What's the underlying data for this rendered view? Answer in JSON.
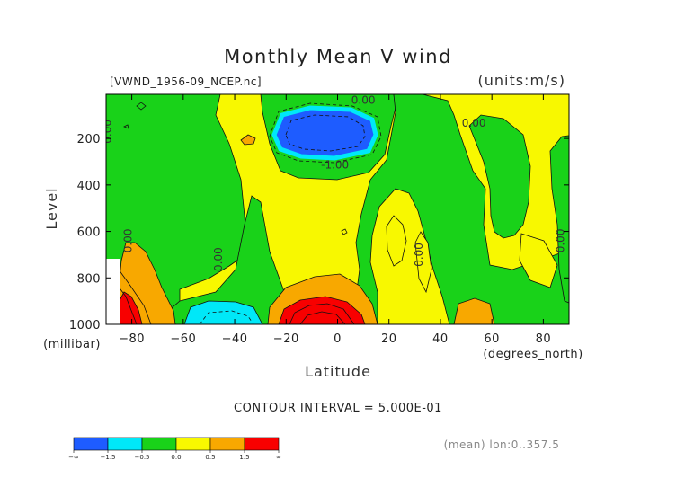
{
  "chart_data": {
    "type": "heatmap",
    "title": "Monthly Mean V wind",
    "file_label": "[VWND_1956-09_NCEP.nc]",
    "units_label": "(units:m/s)",
    "xlabel": "Latitude",
    "x_units": "(degrees_north)",
    "ylabel": "Level",
    "y_units": "(millibar)",
    "xlim": [
      -90,
      90
    ],
    "ylim": [
      1000,
      10
    ],
    "x_ticks": [
      -80,
      -60,
      -40,
      -20,
      0,
      20,
      40,
      60,
      80
    ],
    "y_ticks": [
      200,
      400,
      600,
      800,
      1000
    ],
    "contour_interval_text": "CONTOUR INTERVAL = 5.000E-01",
    "contour_labels": [
      {
        "text": "0.00",
        "lat": 10,
        "lev": 50
      },
      {
        "text": "0.00",
        "lat": 53,
        "lev": 150
      },
      {
        "text": "-1.00",
        "lat": -1,
        "lev": 330
      },
      {
        "text": "0.00",
        "lat": -88,
        "lev": 170,
        "rotate": -90
      },
      {
        "text": "0.00",
        "lat": -80,
        "lev": 640,
        "rotate": -90
      },
      {
        "text": "0.00",
        "lat": -45,
        "lev": 720,
        "rotate": -90
      },
      {
        "text": "0.00",
        "lat": 33,
        "lev": 700,
        "rotate": -90
      },
      {
        "text": "0.00",
        "lat": 88,
        "lev": 640,
        "rotate": -90
      }
    ],
    "colorbar": {
      "labels": [
        "-∞",
        "-1.5",
        "-0.5",
        "0.0",
        "0.5",
        "1.5",
        "∞"
      ],
      "colors": [
        "#1e5cff",
        "#00e8f8",
        "#19d219",
        "#f8f800",
        "#f8a800",
        "#f80000"
      ]
    },
    "annotation": "(mean) lon:0..357.5"
  }
}
